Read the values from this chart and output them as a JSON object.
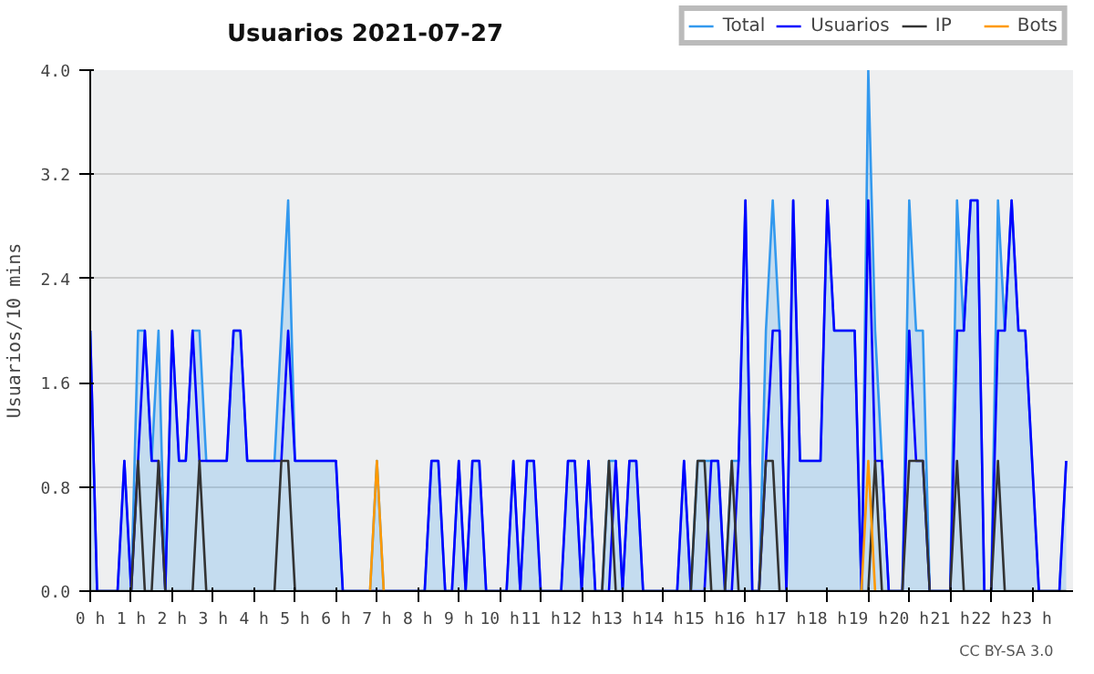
{
  "chart_data": {
    "type": "line",
    "title": "Usuarios  2021-07-27",
    "ylabel": "Usuarios/10 mins",
    "x": [
      0,
      0.167,
      0.333,
      0.5,
      0.667,
      0.833,
      1,
      1.167,
      1.333,
      1.5,
      1.667,
      1.833,
      2,
      2.167,
      2.333,
      2.5,
      2.667,
      2.833,
      3,
      3.167,
      3.333,
      3.5,
      3.667,
      3.833,
      4,
      4.167,
      4.333,
      4.5,
      4.667,
      4.833,
      5,
      5.167,
      5.333,
      5.5,
      5.667,
      5.833,
      6,
      6.167,
      6.333,
      6.5,
      6.667,
      6.833,
      7,
      7.167,
      7.333,
      7.5,
      7.667,
      7.833,
      8,
      8.167,
      8.333,
      8.5,
      8.667,
      8.833,
      9,
      9.167,
      9.333,
      9.5,
      9.667,
      9.833,
      10,
      10.167,
      10.333,
      10.5,
      10.667,
      10.833,
      11,
      11.167,
      11.333,
      11.5,
      11.667,
      11.833,
      12,
      12.167,
      12.333,
      12.5,
      12.667,
      12.833,
      13,
      13.167,
      13.333,
      13.5,
      13.667,
      13.833,
      14,
      14.167,
      14.333,
      14.5,
      14.667,
      14.833,
      15,
      15.167,
      15.333,
      15.5,
      15.667,
      15.833,
      16,
      16.167,
      16.333,
      16.5,
      16.667,
      16.833,
      17,
      17.167,
      17.333,
      17.5,
      17.667,
      17.833,
      18,
      18.167,
      18.333,
      18.5,
      18.667,
      18.833,
      19,
      19.167,
      19.333,
      19.5,
      19.667,
      19.833,
      20,
      20.167,
      20.333,
      20.5,
      20.667,
      20.833,
      21,
      21.167,
      21.333,
      21.5,
      21.667,
      21.833,
      22,
      22.167,
      22.333,
      22.5,
      22.667,
      22.833,
      23,
      23.167,
      23.333,
      23.5,
      23.667,
      23.833
    ],
    "series": [
      {
        "name": "Total",
        "type": "area",
        "color": "#3399ee",
        "values": [
          2,
          0,
          0,
          0,
          0,
          1,
          0,
          2,
          2,
          1,
          2,
          0,
          2,
          1,
          1,
          2,
          2,
          1,
          1,
          1,
          1,
          2,
          2,
          1,
          1,
          1,
          1,
          1,
          2,
          3,
          1,
          1,
          1,
          1,
          1,
          1,
          1,
          0,
          0,
          0,
          0,
          0,
          1,
          0,
          0,
          0,
          0,
          0,
          0,
          0,
          1,
          1,
          0,
          0,
          1,
          0,
          1,
          1,
          0,
          0,
          0,
          0,
          1,
          0,
          1,
          1,
          0,
          0,
          0,
          0,
          1,
          1,
          0,
          1,
          0,
          0,
          1,
          1,
          0,
          1,
          1,
          0,
          0,
          0,
          0,
          0,
          0,
          1,
          0,
          1,
          1,
          1,
          1,
          0,
          1,
          1,
          3,
          0,
          0,
          2,
          3,
          2,
          0,
          3,
          1,
          1,
          1,
          1,
          3,
          2,
          2,
          2,
          2,
          0,
          4,
          2,
          1,
          0,
          0,
          0,
          3,
          2,
          2,
          0,
          0,
          0,
          0,
          3,
          2,
          3,
          3,
          0,
          0,
          3,
          2,
          3,
          2,
          2,
          1,
          0,
          0,
          0,
          0,
          1
        ]
      },
      {
        "name": "Usuarios",
        "color": "#0000ff",
        "values": [
          2,
          0,
          0,
          0,
          0,
          1,
          0,
          1,
          2,
          1,
          1,
          0,
          2,
          1,
          1,
          2,
          1,
          1,
          1,
          1,
          1,
          2,
          2,
          1,
          1,
          1,
          1,
          1,
          1,
          2,
          1,
          1,
          1,
          1,
          1,
          1,
          1,
          0,
          0,
          0,
          0,
          0,
          0,
          0,
          0,
          0,
          0,
          0,
          0,
          0,
          1,
          1,
          0,
          0,
          1,
          0,
          1,
          1,
          0,
          0,
          0,
          0,
          1,
          0,
          1,
          1,
          0,
          0,
          0,
          0,
          1,
          1,
          0,
          1,
          0,
          0,
          0,
          1,
          0,
          1,
          1,
          0,
          0,
          0,
          0,
          0,
          0,
          1,
          0,
          0,
          0,
          1,
          1,
          0,
          0,
          1,
          3,
          0,
          0,
          1,
          2,
          2,
          0,
          3,
          1,
          1,
          1,
          1,
          3,
          2,
          2,
          2,
          2,
          0,
          3,
          1,
          1,
          0,
          0,
          0,
          2,
          1,
          1,
          0,
          0,
          0,
          0,
          2,
          2,
          3,
          3,
          0,
          0,
          2,
          2,
          3,
          2,
          2,
          1,
          0,
          0,
          0,
          0,
          1
        ]
      },
      {
        "name": "IP",
        "color": "#333333",
        "values": [
          0,
          0,
          0,
          0,
          0,
          0,
          0,
          1,
          0,
          0,
          1,
          0,
          0,
          0,
          0,
          0,
          1,
          0,
          0,
          0,
          0,
          0,
          0,
          0,
          0,
          0,
          0,
          0,
          1,
          1,
          0,
          0,
          0,
          0,
          0,
          0,
          0,
          0,
          0,
          0,
          0,
          0,
          0,
          0,
          0,
          0,
          0,
          0,
          0,
          0,
          0,
          0,
          0,
          0,
          0,
          0,
          0,
          0,
          0,
          0,
          0,
          0,
          0,
          0,
          0,
          0,
          0,
          0,
          0,
          0,
          0,
          0,
          0,
          0,
          0,
          0,
          1,
          0,
          0,
          0,
          0,
          0,
          0,
          0,
          0,
          0,
          0,
          0,
          0,
          1,
          1,
          0,
          0,
          0,
          1,
          0,
          0,
          0,
          0,
          1,
          1,
          0,
          0,
          0,
          0,
          0,
          0,
          0,
          0,
          0,
          0,
          0,
          0,
          0,
          0,
          1,
          0,
          0,
          0,
          0,
          1,
          1,
          1,
          0,
          0,
          0,
          0,
          1,
          0,
          0,
          0,
          0,
          0,
          1,
          0,
          0,
          0,
          0,
          0,
          0,
          0,
          0,
          0,
          0
        ]
      },
      {
        "name": "Bots",
        "color": "#ff9900",
        "values": [
          null,
          null,
          null,
          null,
          null,
          null,
          null,
          null,
          null,
          null,
          null,
          null,
          null,
          null,
          null,
          null,
          null,
          null,
          null,
          null,
          null,
          null,
          null,
          null,
          null,
          null,
          null,
          null,
          null,
          null,
          null,
          null,
          null,
          null,
          null,
          null,
          null,
          null,
          null,
          null,
          null,
          0,
          1,
          0,
          null,
          null,
          null,
          null,
          null,
          null,
          null,
          null,
          null,
          null,
          null,
          null,
          null,
          null,
          null,
          null,
          null,
          null,
          null,
          null,
          null,
          null,
          null,
          null,
          null,
          null,
          null,
          null,
          null,
          null,
          null,
          null,
          null,
          null,
          null,
          null,
          null,
          null,
          null,
          null,
          null,
          null,
          null,
          null,
          null,
          null,
          null,
          null,
          null,
          null,
          null,
          null,
          null,
          null,
          null,
          null,
          null,
          null,
          null,
          null,
          null,
          null,
          null,
          null,
          null,
          null,
          null,
          null,
          null,
          0,
          1,
          0,
          null,
          null,
          null,
          null,
          null,
          null,
          null,
          null,
          null,
          null,
          null,
          null,
          null,
          null,
          null,
          null,
          null,
          null,
          null,
          null,
          null,
          null,
          null,
          null,
          null,
          null,
          null,
          null
        ]
      }
    ],
    "xlim": [
      0,
      24
    ],
    "xticks": [
      {
        "value": 0,
        "label": "0 h"
      },
      {
        "value": 1,
        "label": "1 h"
      },
      {
        "value": 2,
        "label": "2 h"
      },
      {
        "value": 3,
        "label": "3 h"
      },
      {
        "value": 4,
        "label": "4 h"
      },
      {
        "value": 5,
        "label": "5 h"
      },
      {
        "value": 6,
        "label": "6 h"
      },
      {
        "value": 7,
        "label": "7 h"
      },
      {
        "value": 8,
        "label": "8 h"
      },
      {
        "value": 9,
        "label": "9 h"
      },
      {
        "value": 10,
        "label": "10 h"
      },
      {
        "value": 11,
        "label": "11 h"
      },
      {
        "value": 12,
        "label": "12 h"
      },
      {
        "value": 13,
        "label": "13 h"
      },
      {
        "value": 14,
        "label": "14 h"
      },
      {
        "value": 15,
        "label": "15 h"
      },
      {
        "value": 16,
        "label": "16 h"
      },
      {
        "value": 17,
        "label": "17 h"
      },
      {
        "value": 18,
        "label": "18 h"
      },
      {
        "value": 19,
        "label": "19 h"
      },
      {
        "value": 20,
        "label": "20 h"
      },
      {
        "value": 21,
        "label": "21 h"
      },
      {
        "value": 22,
        "label": "22 h"
      },
      {
        "value": 23,
        "label": "23 h"
      }
    ],
    "ylim": [
      0,
      4
    ],
    "yticks": [
      {
        "value": 0,
        "label": "0.0"
      },
      {
        "value": 0.8,
        "label": "0.8"
      },
      {
        "value": 1.6,
        "label": "1.6"
      },
      {
        "value": 2.4,
        "label": "2.4"
      },
      {
        "value": 3.2,
        "label": "3.2"
      },
      {
        "value": 4,
        "label": "4.0"
      }
    ],
    "grid": "y",
    "legend": "top right",
    "line_style": "solid",
    "annotations": [
      "CC BY-SA 3.0"
    ]
  }
}
